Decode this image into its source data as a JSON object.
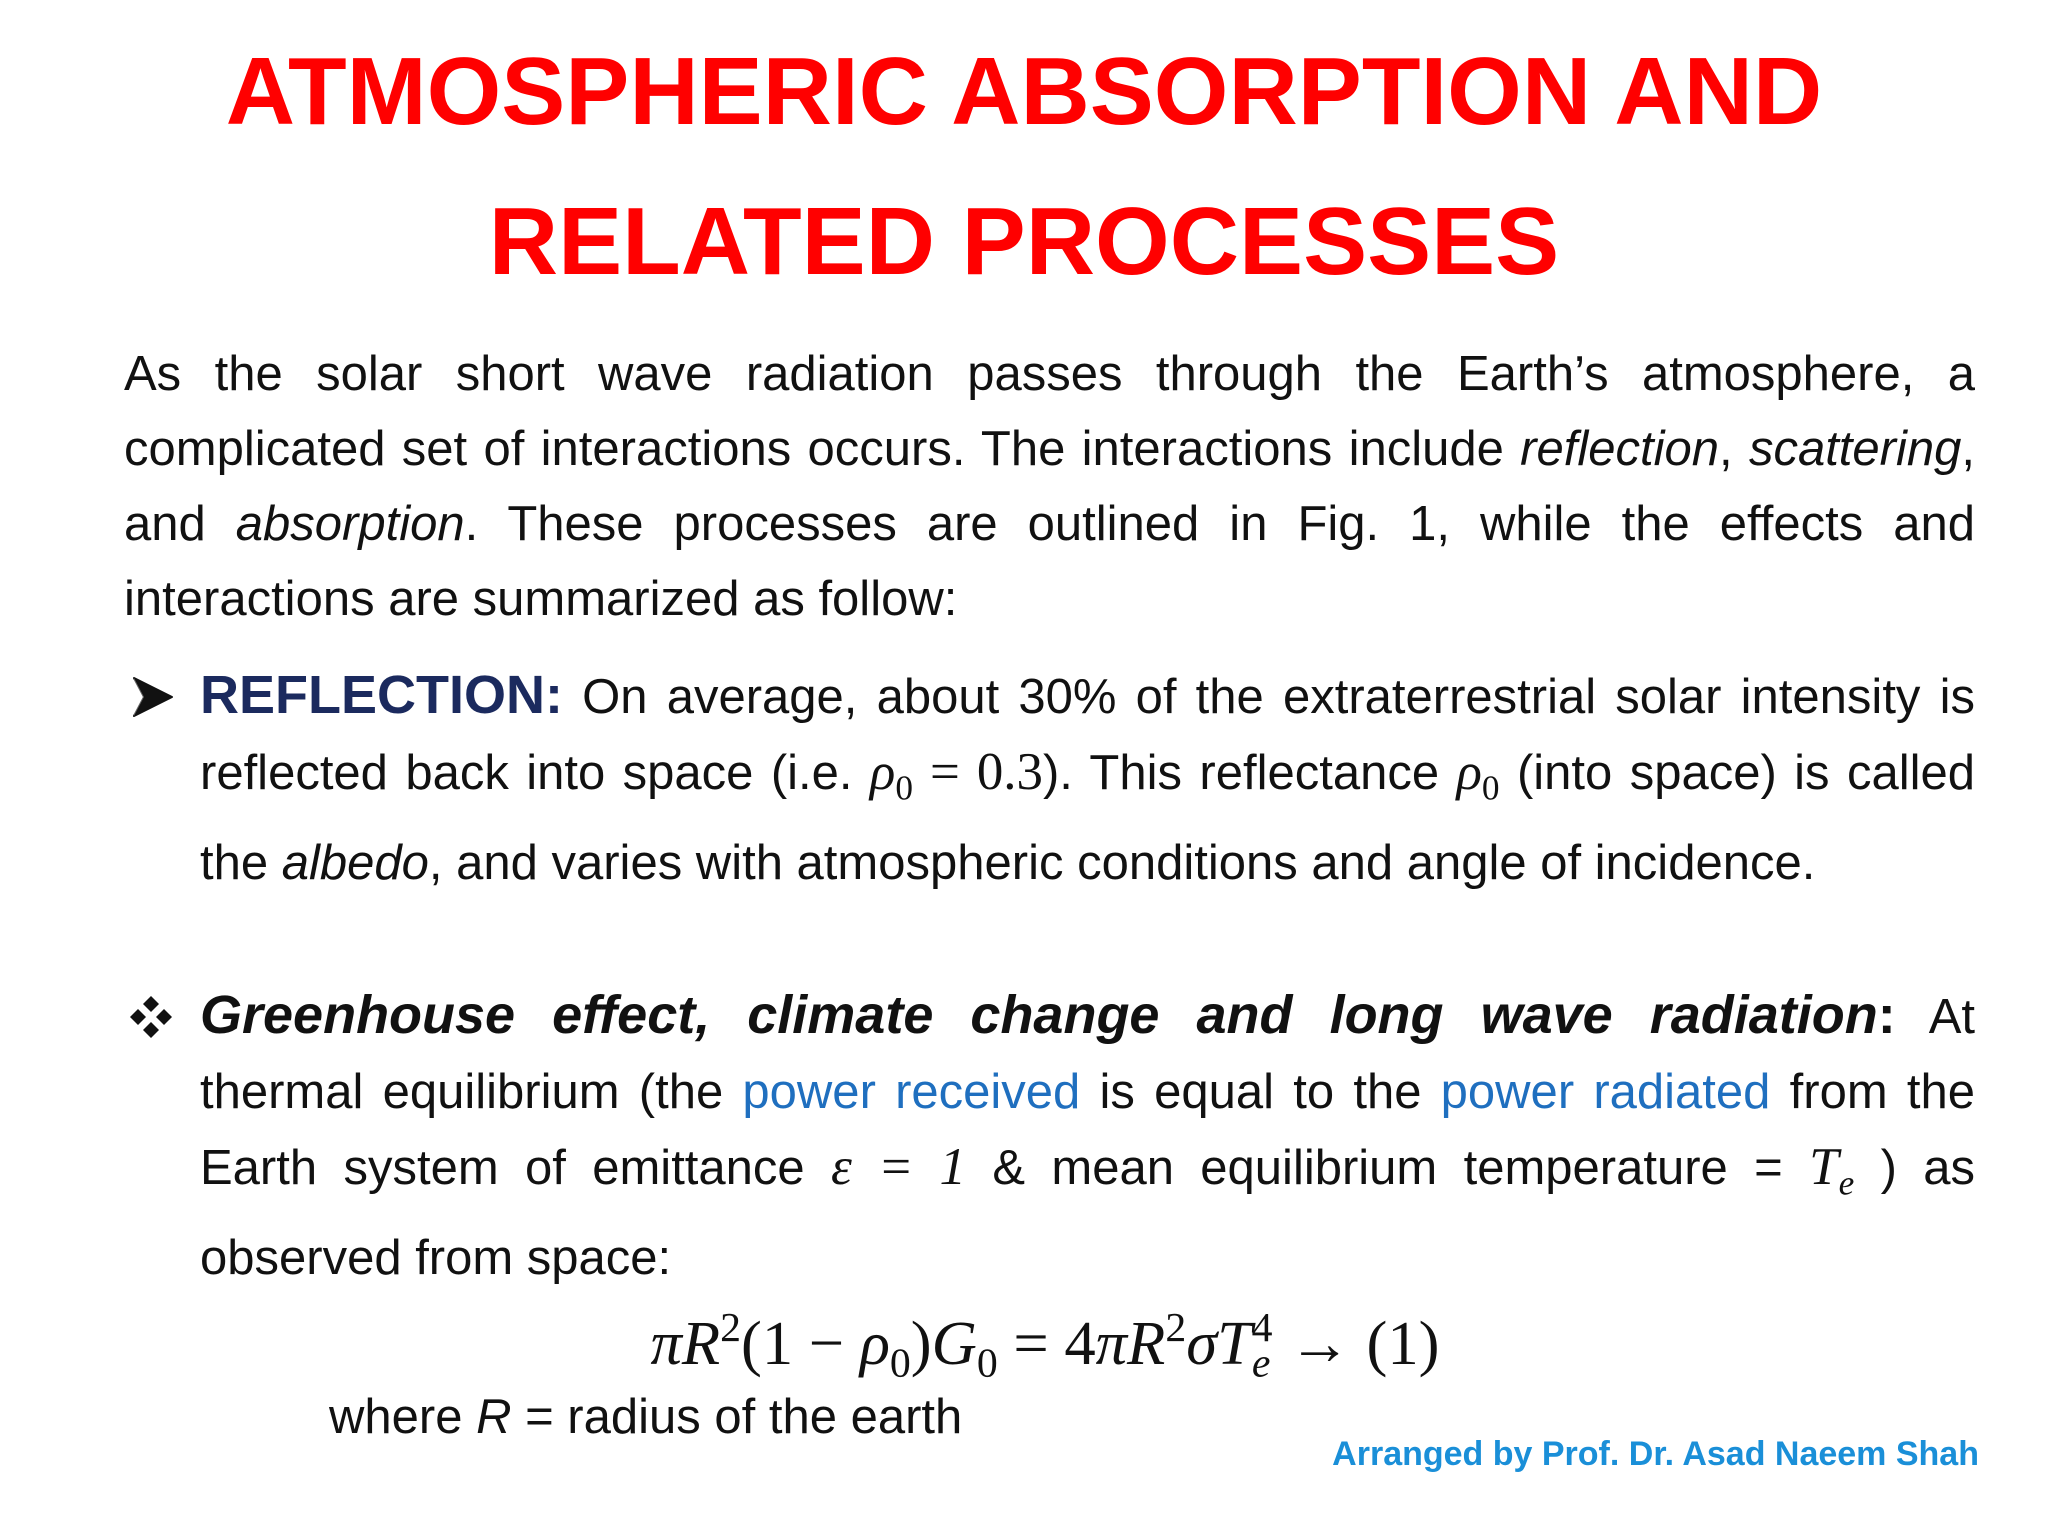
{
  "title": "ATMOSPHERIC ABSORPTION AND RELATED PROCESSES",
  "intro": [
    {
      "text": "As the solar short wave radiation passes through the Earth’s atmosphere, a complicated set of interactions occurs. The interactions include "
    },
    {
      "text": "reflection",
      "style": "italic"
    },
    {
      "text": ", "
    },
    {
      "text": "scattering",
      "style": "italic"
    },
    {
      "text": ", and "
    },
    {
      "text": "absorption",
      "style": "italic"
    },
    {
      "text": ". These processes are outlined in Fig. 1, while the effects and interactions are summarized as follow:"
    }
  ],
  "bullets": [
    {
      "runs": [
        {
          "text": "REFLECTION:",
          "style": "heading"
        },
        {
          "text": " On average, about 30% of the extraterrestrial solar intensity is reflected back into space (i.e. "
        },
        {
          "text": "ρ",
          "style": "math"
        },
        {
          "text": "0",
          "style": "sub"
        },
        {
          "text": " = 0.3",
          "style": "mathr"
        },
        {
          "text": "). This reflectance "
        },
        {
          "text": "ρ",
          "style": "math"
        },
        {
          "text": "0",
          "style": "sub"
        },
        {
          "text": " (into space) is called the "
        },
        {
          "text": "albedo",
          "style": "italic"
        },
        {
          "text": ", and varies with atmospheric conditions and angle of incidence."
        }
      ]
    },
    {
      "runs": [
        {
          "text": "Greenhouse effect, climate change and long wave radiation",
          "style": "heading2"
        },
        {
          "text": ":",
          "style": "bold"
        },
        {
          "text": " At thermal equilibrium (the "
        },
        {
          "text": "power received",
          "style": "link"
        },
        {
          "text": " is equal to the "
        },
        {
          "text": "power radiated",
          "style": "link"
        },
        {
          "text": " from the Earth system of emittance "
        },
        {
          "text": "ε = 1",
          "style": "math"
        },
        {
          "text": "  & mean equilibrium temperature = "
        },
        {
          "text": "T",
          "style": "math"
        },
        {
          "text": "e",
          "style": "subi"
        },
        {
          "text": " ) as observed from space:"
        }
      ],
      "equation": [
        {
          "text": "πR",
          "style": "math"
        },
        {
          "text": "2",
          "style": "sup"
        },
        {
          "text": "(1 − ",
          "style": "mathr"
        },
        {
          "text": "ρ",
          "style": "math"
        },
        {
          "text": "0",
          "style": "sub"
        },
        {
          "text": ")",
          "style": "mathr"
        },
        {
          "text": "G",
          "style": "math"
        },
        {
          "text": "0",
          "style": "sub"
        },
        {
          "text": " = 4",
          "style": "mathr"
        },
        {
          "text": "πR",
          "style": "math"
        },
        {
          "text": "2",
          "style": "sup"
        },
        {
          "text": "σT",
          "style": "math"
        },
        {
          "text": "e",
          "style": "subi"
        },
        {
          "text": "4",
          "style": "supstack"
        },
        {
          "text": " → (1)",
          "style": "mathr"
        }
      ],
      "note": [
        {
          "text": "where "
        },
        {
          "text": "R",
          "style": "italic"
        },
        {
          "text": " = radius of the earth"
        }
      ]
    }
  ],
  "footer": "Arranged by Prof. Dr. Asad Naeem Shah"
}
